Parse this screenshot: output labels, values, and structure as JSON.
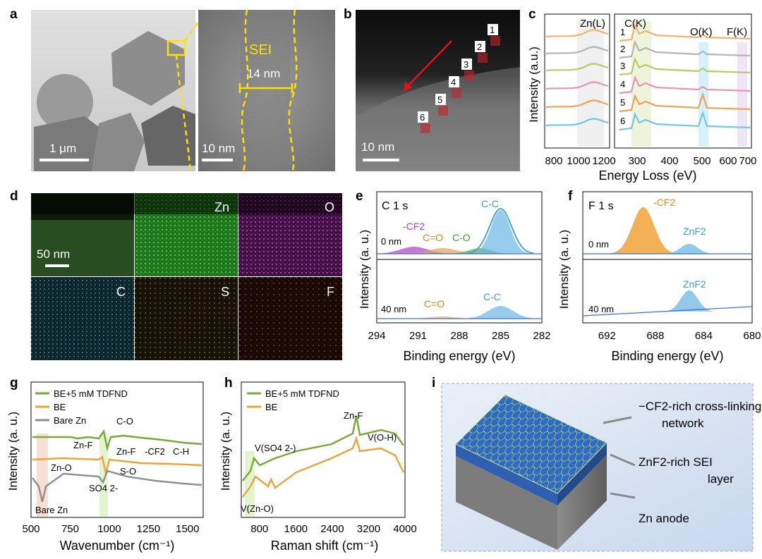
{
  "figure": {
    "panel_labels": [
      "a",
      "b",
      "c",
      "d",
      "e",
      "f",
      "g",
      "h",
      "i"
    ]
  },
  "panel_a": {
    "scale_left": "1 μm",
    "scale_right": "10 nm",
    "sei_label": "SEI",
    "thickness_label": "14 nm"
  },
  "panel_b": {
    "scale": "10 nm",
    "points": [
      "1",
      "2",
      "3",
      "4",
      "5",
      "6"
    ]
  },
  "panel_c": {
    "ylabel": "Intensity (a.u.)",
    "xlabel": "Energy Loss (eV)",
    "left_edge": "Zn(L)",
    "edges": [
      "C(K)",
      "O(K)",
      "F(K)"
    ],
    "left_ticks": [
      "800",
      "1000",
      "1200"
    ],
    "right_ticks": [
      "300",
      "400",
      "500",
      "600",
      "700"
    ],
    "spectra": [
      "1",
      "2",
      "3",
      "4",
      "5",
      "6"
    ],
    "colors": [
      "#f2b26b",
      "#b4b4b4",
      "#bdc867",
      "#e894b4",
      "#f0a254",
      "#74c6e6"
    ]
  },
  "panel_d": {
    "scale": "50 nm",
    "maps": [
      "Zn",
      "O",
      "C",
      "S",
      "F"
    ]
  },
  "panel_e": {
    "title": "C 1 s",
    "ylabel": "Intensity (a. u.)",
    "xlabel": "Binding energy (eV)",
    "ticks": [
      "294",
      "291",
      "288",
      "285",
      "282"
    ],
    "top_depth": "0 nm",
    "bottom_depth": "40 nm",
    "labels_top": [
      "-CF2",
      "C=O",
      "C-O",
      "C-C"
    ],
    "labels_bottom": [
      "C=O",
      "C-C"
    ]
  },
  "panel_f": {
    "title": "F 1 s",
    "ylabel": "Intensity (a. u.)",
    "xlabel": "Binding energy (eV)",
    "ticks": [
      "692",
      "688",
      "684",
      "680"
    ],
    "top_depth": "0 nm",
    "bottom_depth": "40 nm",
    "labels_top": [
      "-CF2",
      "ZnF2"
    ],
    "labels_bottom": [
      "ZnF2"
    ]
  },
  "panel_g": {
    "legend": [
      "BE+5 mM TDFND",
      "BE",
      "Bare Zn"
    ],
    "ylabel": "Intensity (a. u.)",
    "xlabel": "Wavenumber (cm⁻¹)",
    "ticks": [
      "500",
      "750",
      "1000",
      "1250",
      "1500"
    ],
    "annotations": [
      "C-O",
      "Zn-F",
      "Zn-F",
      "-CF2",
      "C-H",
      "Zn-O",
      "S-O",
      "SO4 2-",
      "Bare Zn"
    ]
  },
  "panel_h": {
    "legend": [
      "BE+5 mM TDFND",
      "BE"
    ],
    "ylabel": "Intensity (a. u.)",
    "xlabel": "Raman shift (cm⁻¹)",
    "ticks": [
      "800",
      "1600",
      "2400",
      "3200",
      "4000"
    ],
    "annotations": [
      "Zn-F",
      "V(SO4 2-)",
      "V(O-H)",
      "V(Zn-O)"
    ]
  },
  "panel_i": {
    "labels": [
      "−CF2-rich cross-linking network",
      "ZnF2-rich SEI layer",
      "Zn anode"
    ]
  },
  "chart_data": [
    {
      "type": "line",
      "title": "C 1 s",
      "xlabel": "Binding energy (eV)",
      "ylabel": "Intensity (a. u.)",
      "xlim": [
        294,
        282
      ],
      "series": [
        {
          "name": "0 nm",
          "peaks": [
            {
              "label": "-CF2",
              "x": 291.3
            },
            {
              "label": "C=O",
              "x": 289.2
            },
            {
              "label": "C-O",
              "x": 286.5
            },
            {
              "label": "C-C",
              "x": 285.0
            }
          ]
        },
        {
          "name": "40 nm",
          "peaks": [
            {
              "label": "C=O",
              "x": 289.2
            },
            {
              "label": "C-C",
              "x": 285.0
            }
          ]
        }
      ]
    },
    {
      "type": "line",
      "title": "F 1 s",
      "xlabel": "Binding energy (eV)",
      "ylabel": "Intensity (a. u.)",
      "xlim": [
        694,
        680
      ],
      "series": [
        {
          "name": "0 nm",
          "peaks": [
            {
              "label": "-CF2",
              "x": 689.0
            },
            {
              "label": "ZnF2",
              "x": 685.2
            }
          ]
        },
        {
          "name": "40 nm",
          "peaks": [
            {
              "label": "ZnF2",
              "x": 685.2
            }
          ]
        }
      ]
    },
    {
      "type": "line",
      "xlabel": "Wavenumber (cm⁻¹)",
      "ylabel": "Intensity (a. u.)",
      "xlim": [
        500,
        1600
      ],
      "series": [
        {
          "name": "BE+5 mM TDFND"
        },
        {
          "name": "BE"
        },
        {
          "name": "Bare Zn"
        }
      ]
    },
    {
      "type": "line",
      "xlabel": "Raman shift (cm⁻¹)",
      "ylabel": "Intensity (a. u.)",
      "xlim": [
        400,
        4000
      ],
      "series": [
        {
          "name": "BE+5 mM TDFND"
        },
        {
          "name": "BE"
        }
      ]
    }
  ]
}
